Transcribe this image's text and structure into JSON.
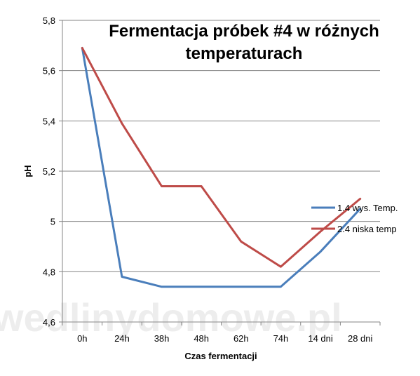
{
  "chart_data": {
    "type": "line",
    "title_lines": [
      "Fermentacja próbek #4 w różnych",
      "temperaturach"
    ],
    "xlabel": "Czas fermentacji",
    "ylabel": "pH",
    "categories": [
      "0h",
      "24h",
      "38h",
      "48h",
      "62h",
      "74h",
      "14 dni",
      "28 dni"
    ],
    "ylim": [
      4.6,
      5.8
    ],
    "yticks": [
      4.6,
      4.8,
      5,
      5.2,
      5.4,
      5.6,
      5.8
    ],
    "ytick_labels": [
      "4,6",
      "4,8",
      "5",
      "5,2",
      "5,4",
      "5,6",
      "5,8"
    ],
    "grid": true,
    "legend_position": "right",
    "series": [
      {
        "name": "1.4 wys. Temp.",
        "color": "#4a7ebb",
        "values": [
          5.69,
          4.78,
          4.74,
          4.74,
          4.74,
          4.74,
          4.88,
          5.05
        ]
      },
      {
        "name": "2.4 niska temp",
        "color": "#be4b48",
        "values": [
          5.69,
          5.39,
          5.14,
          5.14,
          4.92,
          4.82,
          4.96,
          5.09
        ]
      }
    ],
    "watermark": "wedlinydomowe.pl"
  }
}
